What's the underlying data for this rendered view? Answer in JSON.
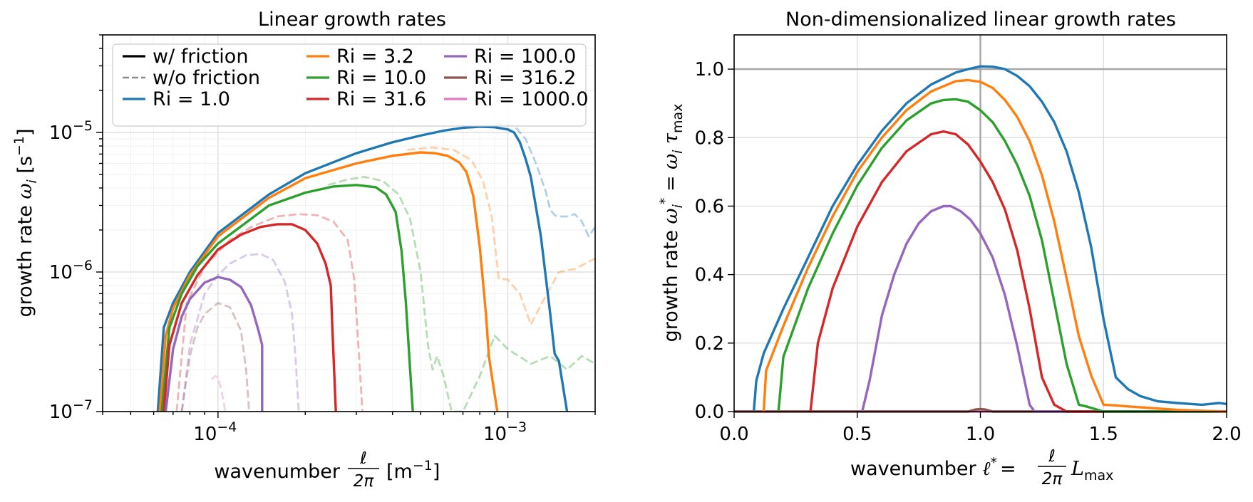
{
  "chart_data": [
    {
      "type": "line",
      "title": "Linear growth rates",
      "xlabel_main": "wavenumber",
      "xlabel_num": "ℓ",
      "xlabel_den": "2π",
      "xlabel_unit": "[m",
      "xlabel_unit_sup": "−1",
      "xlabel_unit_close": "]",
      "ylabel_main": "growth rate",
      "ylabel_sym": "ω",
      "ylabel_sub": "i",
      "ylabel_unit": " [s",
      "ylabel_unit_sup": "−1",
      "ylabel_unit_close": "]",
      "xscale": "log",
      "yscale": "log",
      "xlim": [
        4e-05,
        0.002
      ],
      "ylim": [
        1e-07,
        5e-05
      ],
      "xticks": [
        {
          "value": 0.0001,
          "base": "10",
          "exp": "−4"
        },
        {
          "value": 0.001,
          "base": "10",
          "exp": "−3"
        }
      ],
      "yticks": [
        {
          "value": 1e-07,
          "base": "10",
          "exp": "−7"
        },
        {
          "value": 1e-06,
          "base": "10",
          "exp": "−6"
        },
        {
          "value": 1e-05,
          "base": "10",
          "exp": "−5"
        }
      ],
      "grid": "major and minor",
      "legend": {
        "placement": "top-left",
        "columns": 3,
        "entries": [
          {
            "label": "w/ friction",
            "color": "#000000",
            "style": "solid"
          },
          {
            "label": "w/o friction",
            "color": "#8c8c8c",
            "style": "dashed"
          },
          {
            "label": "Ri = 1.0",
            "color": "#1f77b4",
            "style": "solid"
          },
          {
            "label": "Ri = 3.2",
            "color": "#ff7f0e",
            "style": "solid"
          },
          {
            "label": "Ri = 10.0",
            "color": "#2ca02c",
            "style": "solid"
          },
          {
            "label": "Ri = 31.6",
            "color": "#d62728",
            "style": "solid"
          },
          {
            "label": "Ri = 100.0",
            "color": "#9467bd",
            "style": "solid"
          },
          {
            "label": "Ri = 316.2",
            "color": "#8c564b",
            "style": "solid"
          },
          {
            "label": "Ri = 1000.0",
            "color": "#e377c2",
            "style": "solid"
          }
        ]
      },
      "series": [
        {
          "name": "Ri = 1.0",
          "friction": true,
          "color": "#1f77b4",
          "x": [
            6.2e-05,
            6.5e-05,
            7e-05,
            8e-05,
            0.0001,
            0.00015,
            0.0002,
            0.0003,
            0.0004,
            0.0005,
            0.0006,
            0.0007,
            0.0008,
            0.0009,
            0.001,
            0.00105,
            0.0011,
            0.00115,
            0.0012,
            0.0013,
            0.0014,
            0.00145,
            0.0015,
            0.0016
          ],
          "y": [
            1e-07,
            4e-07,
            6e-07,
            1e-06,
            1.9e-06,
            3.6e-06,
            5.1e-06,
            7.1e-06,
            8.5e-06,
            9.5e-06,
            1.03e-05,
            1.08e-05,
            1.1e-05,
            1.09e-05,
            1.05e-05,
            1e-05,
            8.5e-06,
            6.5e-06,
            4.8e-06,
            1.8e-06,
            5e-07,
            2.6e-07,
            2.3e-07,
            1e-07
          ]
        },
        {
          "name": "Ri = 3.2",
          "friction": true,
          "color": "#ff7f0e",
          "x": [
            6.3e-05,
            6.6e-05,
            7e-05,
            8e-05,
            0.0001,
            0.00015,
            0.0002,
            0.0003,
            0.0004,
            0.0005,
            0.00056,
            0.00062,
            0.00068,
            0.00072,
            0.00076,
            0.0008,
            0.00084,
            0.00086,
            0.00088,
            0.00092
          ],
          "y": [
            1e-07,
            3.5e-07,
            5.5e-07,
            9.5e-07,
            1.8e-06,
            3.4e-06,
            4.7e-06,
            6e-06,
            6.8e-06,
            7.2e-06,
            7.1e-06,
            6.8e-06,
            6.1e-06,
            5.2e-06,
            3.5e-06,
            1.5e-06,
            5e-07,
            2.5e-07,
            1.8e-07,
            1e-07
          ]
        },
        {
          "name": "Ri = 10.0",
          "friction": true,
          "color": "#2ca02c",
          "x": [
            6.4e-05,
            6.8e-05,
            7.5e-05,
            8.5e-05,
            0.0001,
            0.00015,
            0.0002,
            0.00025,
            0.0003,
            0.00035,
            0.00038,
            0.00041,
            0.00043,
            0.000445,
            0.00046,
            0.00047
          ],
          "y": [
            1e-07,
            4e-07,
            7e-07,
            1.1e-06,
            1.6e-06,
            3e-06,
            3.7e-06,
            4.1e-06,
            4.2e-06,
            4.05e-06,
            3.6e-06,
            2.7e-06,
            1.4e-06,
            6e-07,
            2e-07,
            1e-07
          ]
        },
        {
          "name": "Ri = 31.6",
          "friction": true,
          "color": "#d62728",
          "x": [
            6.5e-05,
            6.8e-05,
            7.5e-05,
            8.5e-05,
            0.0001,
            0.00012,
            0.00014,
            0.00016,
            0.00018,
            0.0002,
            0.00022,
            0.000235,
            0.000245,
            0.000248,
            0.000255
          ],
          "y": [
            1e-07,
            3e-07,
            6e-07,
            9.5e-07,
            1.45e-06,
            1.85e-06,
            2.1e-06,
            2.2e-06,
            2.2e-06,
            2e-06,
            1.6e-06,
            1.15e-06,
            8e-07,
            4e-07,
            1e-07
          ]
        },
        {
          "name": "Ri = 100.0",
          "friction": true,
          "color": "#9467bd",
          "x": [
            6.6e-05,
            7e-05,
            7.5e-05,
            8e-05,
            9e-05,
            0.0001,
            0.00011,
            0.00012,
            0.00013,
            0.000138,
            0.000142,
            0.000142
          ],
          "y": [
            1e-07,
            2.8e-07,
            4.8e-07,
            6.4e-07,
            8.4e-07,
            9.2e-07,
            8.8e-07,
            7.8e-07,
            5.8e-07,
            3.8e-07,
            3e-07,
            1e-07
          ]
        },
        {
          "name": "Ri = 1.0",
          "friction": false,
          "color": "#1f77b4",
          "x": [
            0.00075,
            0.00085,
            0.00095,
            0.00105,
            0.00115,
            0.00125,
            0.00135,
            0.0014,
            0.00145,
            0.0015,
            0.0016,
            0.0017,
            0.0018,
            0.0019,
            0.002
          ],
          "y": [
            1.08e-05,
            1.12e-05,
            1.15e-05,
            1.12e-05,
            9e-06,
            6e-06,
            3.8e-06,
            2.8e-06,
            2.55e-06,
            2.5e-06,
            2.5e-06,
            2.6e-06,
            2.3e-06,
            1.8e-06,
            2.1e-06
          ]
        },
        {
          "name": "Ri = 3.2",
          "friction": false,
          "color": "#ff7f0e",
          "x": [
            0.00045,
            0.00055,
            0.00065,
            0.00075,
            0.00082,
            0.00088,
            0.00093,
            0.001,
            0.0011,
            0.0012,
            0.0013,
            0.0015,
            0.0017,
            0.00185,
            0.002
          ],
          "y": [
            7.5e-06,
            7.8e-06,
            7.5e-06,
            6.3e-06,
            4.5e-06,
            2.5e-06,
            9e-07,
            8.8e-07,
            7e-07,
            4.2e-07,
            5.8e-07,
            1e-06,
            1.05e-06,
            1.15e-06,
            1.25e-06
          ]
        },
        {
          "name": "Ri = 10.0",
          "friction": false,
          "color": "#2ca02c",
          "x": [
            0.00024,
            0.00028,
            0.00032,
            0.00037,
            0.00042,
            0.00046,
            0.0005,
            0.00053,
            0.00055,
            0.00057,
            0.0006,
            0.00064,
            0.0007,
            0.0008,
            0.0009,
            0.001,
            0.0012,
            0.0014,
            0.0016,
            0.0018,
            0.002
          ],
          "y": [
            4.2e-06,
            4.6e-06,
            4.8e-06,
            4.5e-06,
            3.6e-06,
            2.4e-06,
            1e-06,
            3e-07,
            2e-07,
            2.5e-07,
            1.8e-07,
            1e-07,
            1e-07,
            1.8e-07,
            3.5e-07,
            2.8e-07,
            2.2e-07,
            2.5e-07,
            2e-07,
            2.5e-07,
            2.2e-07
          ]
        },
        {
          "name": "Ri = 31.6",
          "friction": false,
          "color": "#d62728",
          "x": [
            7.2e-05,
            7.8e-05,
            9e-05,
            0.00011,
            0.00013,
            0.00016,
            0.00019,
            0.00022,
            0.00025,
            0.00028,
            0.000295,
            0.000305,
            0.000315
          ],
          "y": [
            1e-07,
            6e-07,
            1.1e-06,
            1.7e-06,
            2.1e-06,
            2.5e-06,
            2.6e-06,
            2.55e-06,
            2.3e-06,
            1.7e-06,
            9e-07,
            3e-07,
            1e-07
          ]
        },
        {
          "name": "Ri = 100.0",
          "friction": false,
          "color": "#9467bd",
          "x": [
            7.5e-05,
            8e-05,
            9e-05,
            0.0001,
            0.00011,
            0.000125,
            0.00014,
            0.000155,
            0.00017,
            0.00018,
            0.000185,
            0.00019
          ],
          "y": [
            1e-07,
            3e-07,
            7e-07,
            9.5e-07,
            1.15e-06,
            1.32e-06,
            1.35e-06,
            1.22e-06,
            8.5e-07,
            5e-07,
            2.5e-07,
            1e-07
          ]
        },
        {
          "name": "Ri = 316.2",
          "friction": false,
          "color": "#8c564b",
          "x": [
            7.5e-05,
            8e-05,
            8.5e-05,
            9e-05,
            0.0001,
            0.00011,
            0.00012,
            0.000125,
            0.000128
          ],
          "y": [
            1e-07,
            2.5e-07,
            4e-07,
            5e-07,
            6e-07,
            5.6e-07,
            3.8e-07,
            2e-07,
            1e-07
          ]
        },
        {
          "name": "Ri = 1000.0",
          "friction": false,
          "color": "#e377c2",
          "x": [
            9.5e-05,
            9.8e-05,
            0.0001,
            0.000103,
            0.000106
          ],
          "y": [
            1.7e-07,
            1.8e-07,
            1.75e-07,
            1.4e-07,
            1e-07
          ]
        }
      ]
    },
    {
      "type": "line",
      "title": "Non-dimensionalized linear growth rates",
      "xlabel_main": "wavenumber",
      "xlabel_sym": "ℓ",
      "xlabel_sym_sup": "*",
      "xlabel_eq": "=",
      "xlabel_num": "ℓ",
      "xlabel_den": "2π",
      "xlabel_after": "L",
      "xlabel_after_sub": "max",
      "ylabel_main": "growth rate",
      "ylabel_sym": "ω",
      "ylabel_sub": "i",
      "ylabel_sup": "*",
      "ylabel_eq": " = ω",
      "ylabel_eq_sub": "i",
      "ylabel_tau": " τ",
      "ylabel_tau_sub": "max",
      "xscale": "linear",
      "yscale": "linear",
      "xlim": [
        0.0,
        2.0
      ],
      "ylim": [
        0.0,
        1.1
      ],
      "xticks": [
        "0.0",
        "0.5",
        "1.0",
        "1.5",
        "2.0"
      ],
      "yticks": [
        "0.0",
        "0.2",
        "0.4",
        "0.6",
        "0.8",
        "1.0"
      ],
      "grid": "major",
      "reference_lines": {
        "hline": 1.0,
        "vline": 1.0
      },
      "series": [
        {
          "name": "Ri = 1.0",
          "color": "#1f77b4",
          "x": [
            0.08,
            0.09,
            0.12,
            0.2,
            0.3,
            0.4,
            0.5,
            0.6,
            0.7,
            0.8,
            0.9,
            0.95,
            1.0,
            1.05,
            1.1,
            1.15,
            1.2,
            1.25,
            1.3,
            1.35,
            1.4,
            1.45,
            1.5,
            1.55,
            1.6,
            1.65,
            1.72,
            1.8,
            1.9,
            1.97,
            2.0
          ],
          "y": [
            0.0,
            0.09,
            0.17,
            0.3,
            0.45,
            0.6,
            0.72,
            0.82,
            0.9,
            0.955,
            0.99,
            1.0,
            1.008,
            1.007,
            1.0,
            0.98,
            0.95,
            0.905,
            0.845,
            0.76,
            0.64,
            0.48,
            0.27,
            0.1,
            0.065,
            0.045,
            0.03,
            0.025,
            0.02,
            0.025,
            0.022
          ]
        },
        {
          "name": "Ri = 3.2",
          "color": "#ff7f0e",
          "x": [
            0.12,
            0.13,
            0.2,
            0.3,
            0.4,
            0.5,
            0.6,
            0.7,
            0.8,
            0.9,
            0.95,
            1.0,
            1.05,
            1.1,
            1.15,
            1.2,
            1.25,
            1.3,
            1.35,
            1.4,
            1.45,
            1.5,
            1.55,
            1.6,
            1.7,
            1.8,
            1.9,
            2.0
          ],
          "y": [
            0.0,
            0.12,
            0.25,
            0.42,
            0.57,
            0.7,
            0.8,
            0.88,
            0.935,
            0.965,
            0.968,
            0.963,
            0.945,
            0.91,
            0.86,
            0.79,
            0.69,
            0.555,
            0.39,
            0.22,
            0.105,
            0.02,
            0.018,
            0.015,
            0.01,
            0.005,
            0.002,
            0.0
          ]
        },
        {
          "name": "Ri = 10.0",
          "color": "#2ca02c",
          "x": [
            0.18,
            0.2,
            0.3,
            0.4,
            0.5,
            0.6,
            0.7,
            0.8,
            0.85,
            0.9,
            0.95,
            1.0,
            1.05,
            1.1,
            1.15,
            1.2,
            1.25,
            1.3,
            1.35,
            1.4,
            1.43,
            1.5,
            2.0
          ],
          "y": [
            0.0,
            0.16,
            0.36,
            0.52,
            0.66,
            0.77,
            0.85,
            0.9,
            0.91,
            0.912,
            0.905,
            0.88,
            0.845,
            0.79,
            0.72,
            0.63,
            0.5,
            0.32,
            0.14,
            0.02,
            0.015,
            0.0,
            0.0
          ]
        },
        {
          "name": "Ri = 31.6",
          "color": "#d62728",
          "x": [
            0.31,
            0.34,
            0.4,
            0.5,
            0.6,
            0.7,
            0.8,
            0.85,
            0.9,
            0.95,
            1.0,
            1.05,
            1.1,
            1.15,
            1.2,
            1.25,
            1.3,
            1.35,
            1.4,
            2.0
          ],
          "y": [
            0.0,
            0.2,
            0.36,
            0.54,
            0.67,
            0.76,
            0.81,
            0.818,
            0.81,
            0.78,
            0.73,
            0.67,
            0.59,
            0.47,
            0.3,
            0.1,
            0.02,
            0.0,
            0.0,
            0.0
          ]
        },
        {
          "name": "Ri = 100.0",
          "color": "#9467bd",
          "x": [
            0.52,
            0.55,
            0.6,
            0.65,
            0.7,
            0.75,
            0.8,
            0.85,
            0.88,
            0.92,
            0.96,
            1.0,
            1.05,
            1.1,
            1.15,
            1.2,
            1.22,
            2.0
          ],
          "y": [
            0.0,
            0.09,
            0.28,
            0.4,
            0.49,
            0.55,
            0.585,
            0.6,
            0.6,
            0.585,
            0.56,
            0.52,
            0.45,
            0.34,
            0.19,
            0.02,
            0.0,
            0.0
          ]
        },
        {
          "name": "Ri = 316.2",
          "color": "#8c564b",
          "x": [
            0.0,
            0.95,
            0.98,
            1.0,
            1.02,
            1.05,
            2.0
          ],
          "y": [
            0.0,
            0.0,
            0.006,
            0.007,
            0.006,
            0.0,
            0.0
          ]
        },
        {
          "name": "Ri = 1000.0",
          "color": "#e377c2",
          "x": [
            0.0,
            2.0
          ],
          "y": [
            0.0,
            0.0
          ]
        }
      ]
    }
  ]
}
